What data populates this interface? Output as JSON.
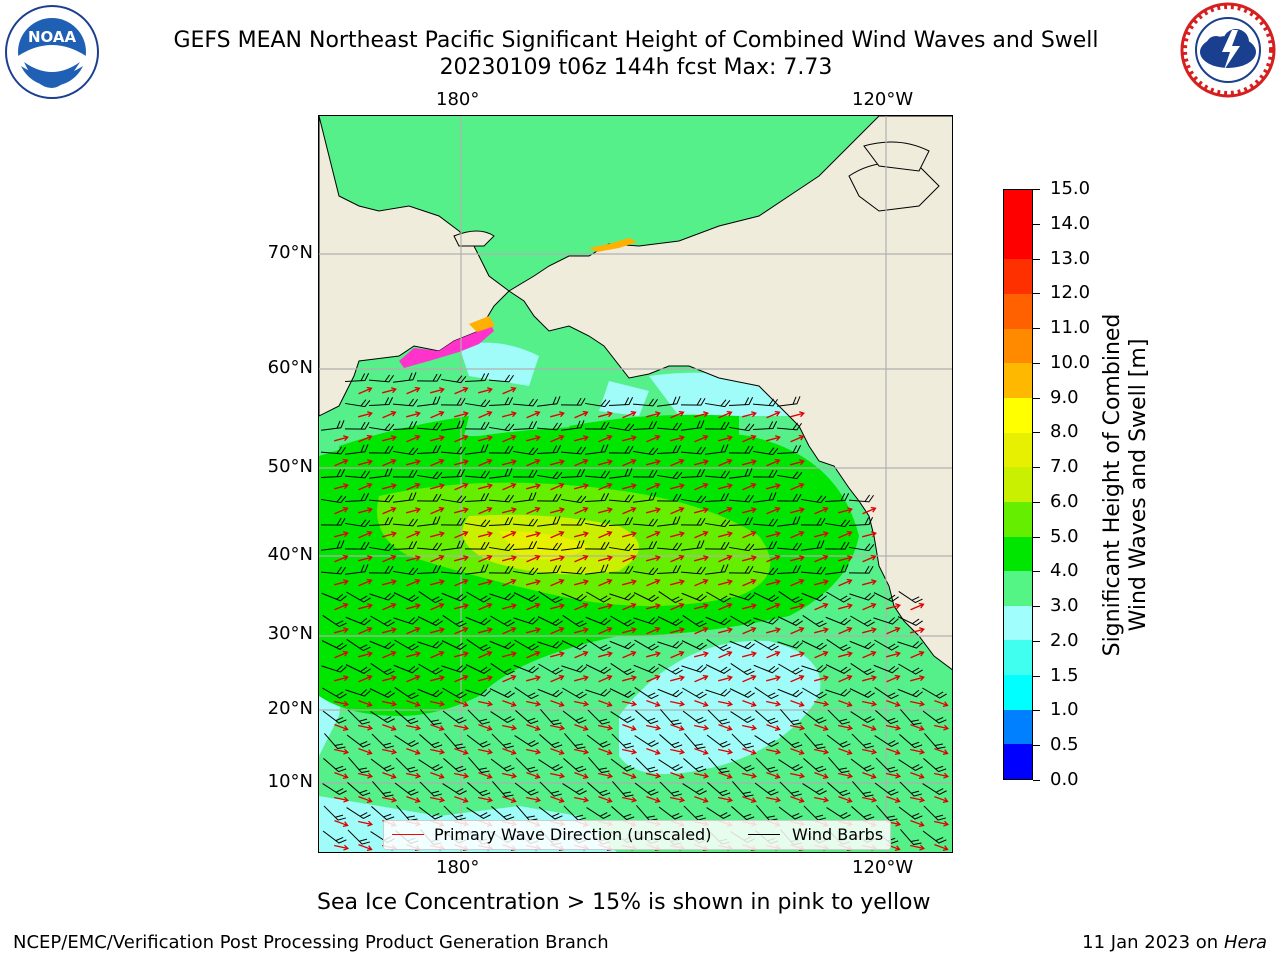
{
  "title": {
    "line1": "GEFS MEAN Northeast Pacific Significant Height of Combined Wind Waves and Swell",
    "line2": "20230109 t06z 144h fcst   Max: 7.73"
  },
  "logos": {
    "left": {
      "icon": "noaa-logo",
      "text": "NOAA",
      "ring_text": "NATIONAL OCEANIC AND ATMOSPHERIC ADMINISTRATION · U.S. DEPARTMENT OF COMMERCE"
    },
    "right": {
      "icon": "nws-logo",
      "ring_text": "NATIONAL WEATHER SERVICE"
    }
  },
  "map": {
    "lon_labels_top": [
      "180°",
      "120°W"
    ],
    "lon_labels_bottom": [
      "180°",
      "120°W"
    ],
    "lat_labels": [
      "70°N",
      "60°N",
      "50°N",
      "40°N",
      "30°N",
      "20°N",
      "10°N"
    ],
    "colors": {
      "land": "#efecdc",
      "ocean_low": "#9ffcf8",
      "ocean_mid": "#56f08a",
      "ocean_high": "#00e600",
      "ocean_peak": "#d6f500",
      "ice": "#ff33cc",
      "grid": "#b0b0b0"
    },
    "legend": {
      "items": [
        {
          "label": "Primary Wave Direction (unscaled)",
          "color": "#ff0000"
        },
        {
          "label": "Wind Barbs",
          "color": "#000000"
        }
      ]
    }
  },
  "colorbar": {
    "title_line1": "Significant Height of Combined",
    "title_line2": "Wind Waves and Swell [m]",
    "ticks": [
      "0.0",
      "0.5",
      "1.0",
      "1.5",
      "2.0",
      "3.0",
      "4.0",
      "5.0",
      "6.0",
      "7.0",
      "8.0",
      "9.0",
      "10.0",
      "11.0",
      "12.0",
      "13.0",
      "14.0",
      "15.0"
    ],
    "colors": [
      "#0000ff",
      "#0080ff",
      "#00ffff",
      "#40ffee",
      "#a0fffc",
      "#55f585",
      "#00e600",
      "#66ee00",
      "#c8f000",
      "#e6f000",
      "#ffff00",
      "#ffb800",
      "#ff8a00",
      "#ff6000",
      "#ff3000",
      "#ff0000",
      "#ff0000"
    ]
  },
  "footer": {
    "note": "Sea Ice Concentration > 15% is shown in pink to yellow",
    "left": "NCEP/EMC/Verification Post Processing Product Generation Branch",
    "right_date": "11 Jan 2023 on ",
    "right_host": "Hera"
  }
}
